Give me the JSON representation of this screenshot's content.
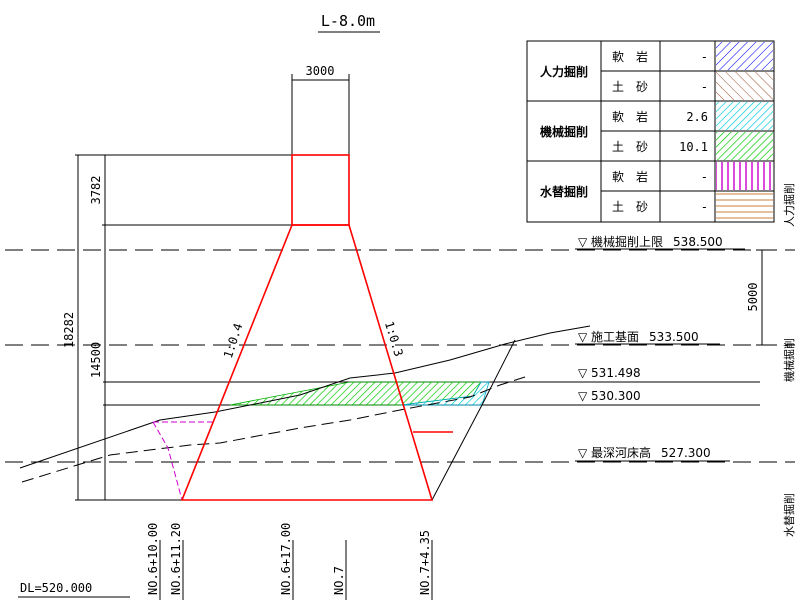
{
  "title": "L-8.0m",
  "datum": "DL=520.000",
  "top_width": "3000",
  "dim_total": "18282",
  "dim_upper": "3782",
  "dim_lower": "14500",
  "dim_right": "5000",
  "slope_left": "1:0.4",
  "slope_right": "1:0.3",
  "levels": [
    {
      "label": "▽ 機械掘削上限",
      "value": "538.500"
    },
    {
      "label": "▽ 施工基面",
      "value": "533.500"
    },
    {
      "label": "▽ 531.498",
      "value": ""
    },
    {
      "label": "▽ 530.300",
      "value": ""
    },
    {
      "label": "▽ 最深河床高",
      "value": "527.300"
    }
  ],
  "stations": [
    "NO.6+10.00",
    "NO.6+11.20",
    "NO.6+17.00",
    "NO.7",
    "NO.7+4.35"
  ],
  "right_labels": [
    "人力掘削",
    "機械掘削",
    "水替掘削"
  ],
  "legend": [
    {
      "group": "人力掘削",
      "rows": [
        {
          "material": "軟　岩",
          "value": "-",
          "hatch": "hatch-blue"
        },
        {
          "material": "土　砂",
          "value": "-",
          "hatch": "hatch-brown"
        }
      ]
    },
    {
      "group": "機械掘削",
      "rows": [
        {
          "material": "軟　岩",
          "value": "2.6",
          "hatch": "hatch-cyan"
        },
        {
          "material": "土　砂",
          "value": "10.1",
          "hatch": "hatch-green"
        }
      ]
    },
    {
      "group": "水替掘削",
      "rows": [
        {
          "material": "軟　岩",
          "value": "-",
          "hatch": "hatch-magenta"
        },
        {
          "material": "土　砂",
          "value": "-",
          "hatch": "hatch-tan"
        }
      ]
    }
  ],
  "colors": {
    "outline": "#ff0000",
    "hatch_blue": "#0000ff",
    "hatch_brown": "#a0522d",
    "hatch_cyan": "#00ccdd",
    "hatch_green": "#00cc00",
    "hatch_magenta": "#cc00cc",
    "hatch_tan": "#c8823c"
  }
}
